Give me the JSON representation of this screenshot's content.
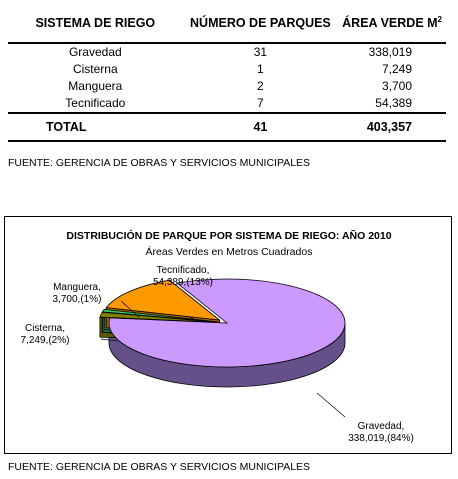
{
  "table": {
    "headers": [
      "SISTEMA DE RIEGO",
      "NÚMERO DE PARQUES",
      "ÁREA VERDE M",
      "2"
    ],
    "rows": [
      {
        "system": "Gravedad",
        "parks": "31",
        "area": "338,019"
      },
      {
        "system": "Cisterna",
        "parks": "1",
        "area": "7,249"
      },
      {
        "system": "Manguera",
        "parks": "2",
        "area": "3,700"
      },
      {
        "system": "Tecnificado",
        "parks": "7",
        "area": "54,389"
      }
    ],
    "total": {
      "label": "TOTAL",
      "parks": "41",
      "area": "403,357"
    }
  },
  "source_table": "FUENTE: GERENCIA DE OBRAS Y SERVICIOS MUNICIPALES",
  "source_chart": "FUENTE: GERENCIA DE OBRAS Y SERVICIOS MUNICIPALES",
  "chart_data": {
    "type": "pie",
    "title": "DISTRIBUCIÓN  DE PARQUE POR SISTEMA DE RIEGO: AÑO  2010",
    "subtitle": "Áreas Verdes en Metros Cuadrados",
    "slices": [
      {
        "label": "Gravedad,",
        "value_label": "338,019,(84%)",
        "value": 338019,
        "percent": 84,
        "color": "#cc99ff",
        "side_color": "#66508a"
      },
      {
        "label": "Cisterna,",
        "value_label": "7,249,(2%)",
        "value": 7249,
        "percent": 2,
        "color": "#808000",
        "side_color": "#5a5a00"
      },
      {
        "label": "Manguera,",
        "value_label": "3,700,(1%)",
        "value": 3700,
        "percent": 1,
        "color": "#33cc66",
        "side_color": "#1f7a3d"
      },
      {
        "label": "Tecnificado,",
        "value_label": "54,389,(13%)",
        "value": 54389,
        "percent": 13,
        "color": "#ff9900",
        "side_color": "#a86400"
      }
    ]
  }
}
